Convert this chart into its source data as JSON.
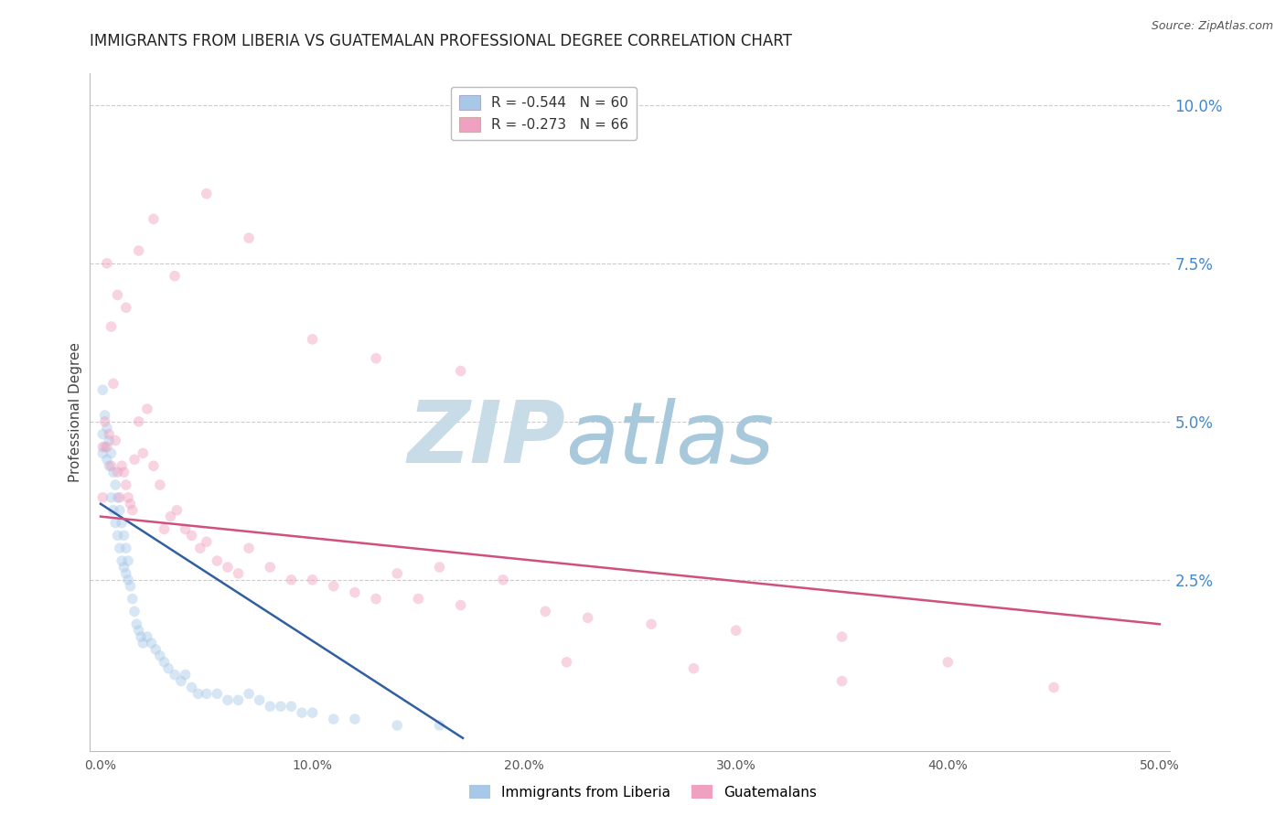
{
  "title": "IMMIGRANTS FROM LIBERIA VS GUATEMALAN PROFESSIONAL DEGREE CORRELATION CHART",
  "source": "Source: ZipAtlas.com",
  "ylabel": "Professional Degree",
  "series": [
    {
      "name": "Immigrants from Liberia",
      "R": -0.544,
      "N": 60,
      "color": "#a8c8e8",
      "line_color": "#3060a0",
      "x": [
        0.001,
        0.001,
        0.001,
        0.002,
        0.002,
        0.003,
        0.003,
        0.004,
        0.004,
        0.005,
        0.005,
        0.006,
        0.006,
        0.007,
        0.007,
        0.008,
        0.008,
        0.009,
        0.009,
        0.01,
        0.01,
        0.011,
        0.011,
        0.012,
        0.012,
        0.013,
        0.013,
        0.014,
        0.015,
        0.016,
        0.017,
        0.018,
        0.019,
        0.02,
        0.022,
        0.024,
        0.026,
        0.028,
        0.03,
        0.032,
        0.035,
        0.038,
        0.04,
        0.043,
        0.046,
        0.05,
        0.055,
        0.06,
        0.065,
        0.07,
        0.075,
        0.08,
        0.085,
        0.09,
        0.095,
        0.1,
        0.11,
        0.12,
        0.14,
        0.16
      ],
      "y": [
        0.055,
        0.048,
        0.045,
        0.051,
        0.046,
        0.049,
        0.044,
        0.047,
        0.043,
        0.045,
        0.038,
        0.042,
        0.036,
        0.04,
        0.034,
        0.038,
        0.032,
        0.036,
        0.03,
        0.034,
        0.028,
        0.032,
        0.027,
        0.03,
        0.026,
        0.028,
        0.025,
        0.024,
        0.022,
        0.02,
        0.018,
        0.017,
        0.016,
        0.015,
        0.016,
        0.015,
        0.014,
        0.013,
        0.012,
        0.011,
        0.01,
        0.009,
        0.01,
        0.008,
        0.007,
        0.007,
        0.007,
        0.006,
        0.006,
        0.007,
        0.006,
        0.005,
        0.005,
        0.005,
        0.004,
        0.004,
        0.003,
        0.003,
        0.002,
        0.002
      ],
      "trend_x": [
        0.0,
        0.171
      ],
      "trend_y": [
        0.037,
        0.0
      ]
    },
    {
      "name": "Guatemalans",
      "R": -0.273,
      "N": 66,
      "color": "#f0a0c0",
      "line_color": "#d05080",
      "x": [
        0.001,
        0.001,
        0.002,
        0.003,
        0.004,
        0.005,
        0.006,
        0.007,
        0.008,
        0.009,
        0.01,
        0.011,
        0.012,
        0.013,
        0.014,
        0.015,
        0.016,
        0.018,
        0.02,
        0.022,
        0.025,
        0.028,
        0.03,
        0.033,
        0.036,
        0.04,
        0.043,
        0.047,
        0.05,
        0.055,
        0.06,
        0.065,
        0.07,
        0.08,
        0.09,
        0.1,
        0.11,
        0.12,
        0.13,
        0.14,
        0.15,
        0.16,
        0.17,
        0.19,
        0.21,
        0.23,
        0.26,
        0.3,
        0.35,
        0.4,
        0.003,
        0.005,
        0.008,
        0.012,
        0.018,
        0.025,
        0.035,
        0.05,
        0.07,
        0.1,
        0.13,
        0.17,
        0.22,
        0.28,
        0.35,
        0.45
      ],
      "y": [
        0.046,
        0.038,
        0.05,
        0.046,
        0.048,
        0.043,
        0.056,
        0.047,
        0.042,
        0.038,
        0.043,
        0.042,
        0.04,
        0.038,
        0.037,
        0.036,
        0.044,
        0.05,
        0.045,
        0.052,
        0.043,
        0.04,
        0.033,
        0.035,
        0.036,
        0.033,
        0.032,
        0.03,
        0.031,
        0.028,
        0.027,
        0.026,
        0.03,
        0.027,
        0.025,
        0.025,
        0.024,
        0.023,
        0.022,
        0.026,
        0.022,
        0.027,
        0.021,
        0.025,
        0.02,
        0.019,
        0.018,
        0.017,
        0.016,
        0.012,
        0.075,
        0.065,
        0.07,
        0.068,
        0.077,
        0.082,
        0.073,
        0.086,
        0.079,
        0.063,
        0.06,
        0.058,
        0.012,
        0.011,
        0.009,
        0.008
      ],
      "trend_x": [
        0.0,
        0.5
      ],
      "trend_y": [
        0.035,
        0.018
      ]
    }
  ],
  "xlim": [
    -0.005,
    0.505
  ],
  "ylim": [
    -0.002,
    0.105
  ],
  "xticks": [
    0.0,
    0.1,
    0.2,
    0.3,
    0.4,
    0.5
  ],
  "xtick_labels": [
    "0.0%",
    "10.0%",
    "20.0%",
    "30.0%",
    "40.0%",
    "50.0%"
  ],
  "yticks_right": [
    0.0,
    0.025,
    0.05,
    0.075,
    0.1
  ],
  "ytick_labels_right": [
    "",
    "2.5%",
    "5.0%",
    "7.5%",
    "10.0%"
  ],
  "grid_color": "#cccccc",
  "background_color": "#ffffff",
  "watermark_zip": "ZIP",
  "watermark_atlas": "atlas",
  "watermark_color_zip": "#c8dce8",
  "watermark_color_atlas": "#a8c8dc",
  "title_fontsize": 12,
  "axis_label_fontsize": 11,
  "tick_fontsize": 10,
  "legend_fontsize": 11,
  "marker_size": 70,
  "marker_alpha": 0.45,
  "right_tick_color": "#4488cc",
  "bottom_tick_color": "#555555"
}
